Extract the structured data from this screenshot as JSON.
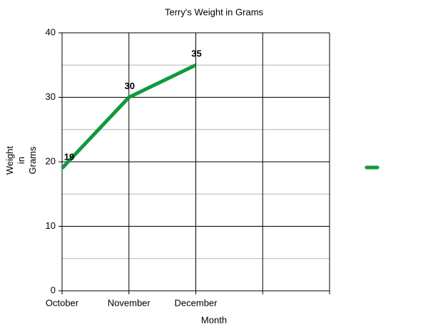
{
  "chart_data": {
    "type": "line",
    "title": "Terry's Weight in Grams",
    "x_label": "Month",
    "y_label": "Weight in Grams",
    "categories": [
      "October",
      "November",
      "December",
      null,
      null
    ],
    "series": [
      {
        "color": "#119a3c",
        "values": [
          19,
          30,
          35,
          null,
          null
        ]
      }
    ],
    "ylim": [
      0,
      40
    ],
    "yticks": [
      0,
      10,
      20,
      30,
      40
    ],
    "minor_yticks": [
      5,
      15,
      25,
      35
    ],
    "grid": true,
    "data_labels": true,
    "legend": "right"
  }
}
